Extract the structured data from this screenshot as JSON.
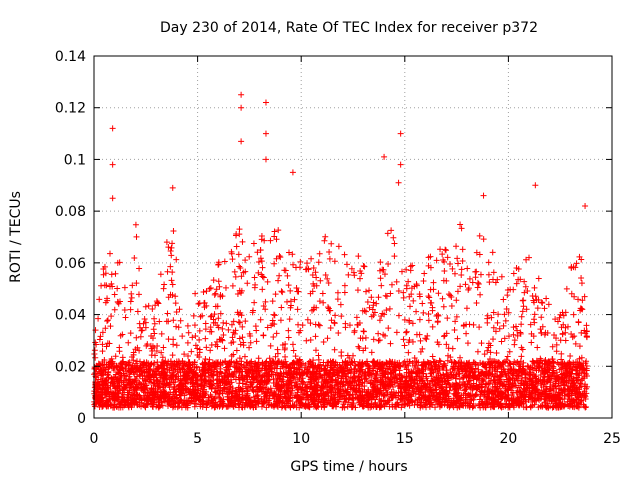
{
  "chart_data": {
    "type": "scatter",
    "title": "Day 230 of 2014, Rate Of TEC Index for receiver p372",
    "xlabel": "GPS time / hours",
    "ylabel": "ROTI / TECUs",
    "xlim": [
      0,
      25
    ],
    "ylim": [
      0,
      0.14
    ],
    "xticks": [
      0,
      5,
      10,
      15,
      20,
      25
    ],
    "yticks": [
      0,
      0.02,
      0.04,
      0.06,
      0.08,
      0.1,
      0.12,
      0.14
    ],
    "xtick_labels": [
      "0",
      "5",
      "10",
      "15",
      "20",
      "25"
    ],
    "ytick_labels": [
      "0",
      "0.02",
      "0.04",
      "0.06",
      "0.08",
      "0.1",
      "0.12",
      "0.14"
    ],
    "grid": true,
    "marker": "+",
    "series": [
      {
        "name": "p372",
        "color": "#ff0000",
        "x_range": [
          0,
          23.8
        ],
        "notable_points": [
          {
            "x": 0.9,
            "y": 0.112
          },
          {
            "x": 0.9,
            "y": 0.098
          },
          {
            "x": 0.9,
            "y": 0.085
          },
          {
            "x": 7.1,
            "y": 0.125
          },
          {
            "x": 7.1,
            "y": 0.12
          },
          {
            "x": 7.1,
            "y": 0.107
          },
          {
            "x": 8.3,
            "y": 0.122
          },
          {
            "x": 8.3,
            "y": 0.11
          },
          {
            "x": 8.3,
            "y": 0.1
          },
          {
            "x": 9.6,
            "y": 0.095
          },
          {
            "x": 3.8,
            "y": 0.089
          },
          {
            "x": 14.0,
            "y": 0.101
          },
          {
            "x": 14.8,
            "y": 0.11
          },
          {
            "x": 14.8,
            "y": 0.098
          },
          {
            "x": 14.7,
            "y": 0.091
          },
          {
            "x": 21.3,
            "y": 0.09
          },
          {
            "x": 18.8,
            "y": 0.086
          },
          {
            "x": 23.7,
            "y": 0.082
          }
        ],
        "envelope": [
          {
            "x": 0.0,
            "y": 0.04
          },
          {
            "x": 0.5,
            "y": 0.06
          },
          {
            "x": 1.0,
            "y": 0.075
          },
          {
            "x": 1.5,
            "y": 0.05
          },
          {
            "x": 2.0,
            "y": 0.077
          },
          {
            "x": 2.5,
            "y": 0.05
          },
          {
            "x": 3.0,
            "y": 0.045
          },
          {
            "x": 3.5,
            "y": 0.07
          },
          {
            "x": 3.8,
            "y": 0.085
          },
          {
            "x": 4.2,
            "y": 0.04
          },
          {
            "x": 4.6,
            "y": 0.035
          },
          {
            "x": 5.0,
            "y": 0.055
          },
          {
            "x": 5.5,
            "y": 0.05
          },
          {
            "x": 6.0,
            "y": 0.06
          },
          {
            "x": 6.5,
            "y": 0.065
          },
          {
            "x": 7.0,
            "y": 0.075
          },
          {
            "x": 7.5,
            "y": 0.065
          },
          {
            "x": 8.0,
            "y": 0.075
          },
          {
            "x": 8.5,
            "y": 0.07
          },
          {
            "x": 9.0,
            "y": 0.075
          },
          {
            "x": 9.5,
            "y": 0.068
          },
          {
            "x": 10.0,
            "y": 0.06
          },
          {
            "x": 10.5,
            "y": 0.065
          },
          {
            "x": 11.0,
            "y": 0.075
          },
          {
            "x": 11.5,
            "y": 0.07
          },
          {
            "x": 12.0,
            "y": 0.065
          },
          {
            "x": 12.5,
            "y": 0.068
          },
          {
            "x": 13.0,
            "y": 0.06
          },
          {
            "x": 13.5,
            "y": 0.05
          },
          {
            "x": 14.0,
            "y": 0.07
          },
          {
            "x": 14.5,
            "y": 0.075
          },
          {
            "x": 15.0,
            "y": 0.06
          },
          {
            "x": 15.5,
            "y": 0.06
          },
          {
            "x": 16.0,
            "y": 0.065
          },
          {
            "x": 16.5,
            "y": 0.07
          },
          {
            "x": 17.0,
            "y": 0.065
          },
          {
            "x": 17.5,
            "y": 0.075
          },
          {
            "x": 18.0,
            "y": 0.075
          },
          {
            "x": 18.5,
            "y": 0.07
          },
          {
            "x": 19.0,
            "y": 0.075
          },
          {
            "x": 19.5,
            "y": 0.055
          },
          {
            "x": 20.0,
            "y": 0.055
          },
          {
            "x": 20.5,
            "y": 0.06
          },
          {
            "x": 21.0,
            "y": 0.065
          },
          {
            "x": 21.5,
            "y": 0.055
          },
          {
            "x": 22.0,
            "y": 0.045
          },
          {
            "x": 22.5,
            "y": 0.04
          },
          {
            "x": 23.0,
            "y": 0.06
          },
          {
            "x": 23.5,
            "y": 0.065
          },
          {
            "x": 23.8,
            "y": 0.04
          }
        ]
      }
    ]
  }
}
